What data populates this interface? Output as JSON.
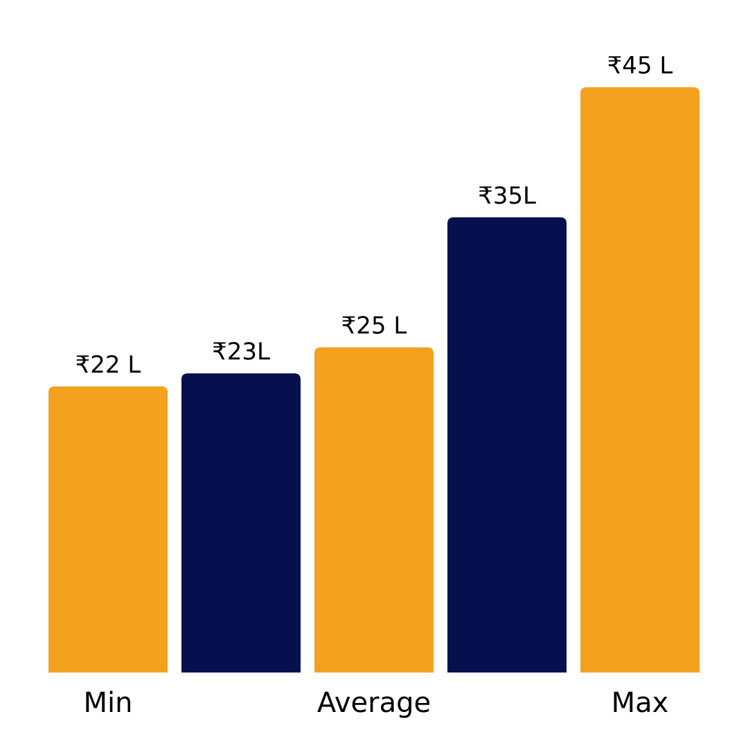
{
  "chart_data": {
    "type": "bar",
    "title": "",
    "xlabel": "",
    "ylabel": "",
    "categories": [
      "Min",
      "",
      "Average",
      "",
      "Max"
    ],
    "values": [
      22,
      23,
      25,
      35,
      45
    ],
    "value_labels": [
      "₹22 L",
      "₹23L",
      "₹25 L",
      "₹35L",
      "₹45 L"
    ],
    "unit": "₹ Lakh",
    "ylim": [
      0,
      45
    ],
    "grid": false,
    "legend": "none",
    "bar_colors": [
      "#F4A11F",
      "#06104E",
      "#F4A11F",
      "#06104E",
      "#F4A11F"
    ]
  }
}
